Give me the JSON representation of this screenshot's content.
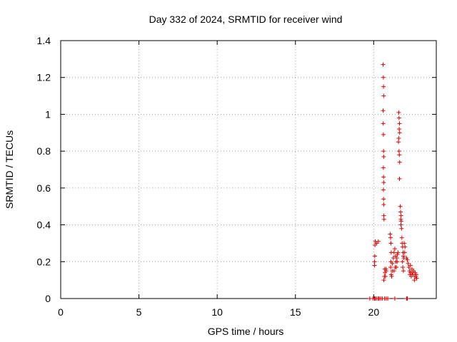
{
  "chart_data": {
    "type": "scatter",
    "title": "Day 332 of 2024, SRMTID for receiver wind",
    "xlabel": "GPS time / hours",
    "ylabel": "SRMTID / TECUs",
    "xlim": [
      0,
      24
    ],
    "ylim": [
      0,
      1.4
    ],
    "xticks": [
      0,
      5,
      10,
      15,
      20
    ],
    "xtick_labels": [
      "0",
      "5",
      "10",
      "15",
      "20"
    ],
    "yticks": [
      0,
      0.2,
      0.4,
      0.6,
      0.8,
      1,
      1.2,
      1.4
    ],
    "ytick_labels": [
      "0",
      "0.2",
      "0.4",
      "0.6",
      "0.8",
      "1",
      "1.2",
      "1.4"
    ],
    "grid": true,
    "marker": "+",
    "color": "#e00000",
    "series": [
      {
        "name": "SRMTID",
        "points": [
          [
            19.75,
            0
          ],
          [
            19.95,
            0
          ],
          [
            20.05,
            0
          ],
          [
            20.1,
            0
          ],
          [
            20.2,
            0
          ],
          [
            20.3,
            0
          ],
          [
            20.35,
            0
          ],
          [
            20.45,
            0
          ],
          [
            20.55,
            0
          ],
          [
            20.7,
            0
          ],
          [
            20.8,
            0
          ],
          [
            20.9,
            0
          ],
          [
            21.35,
            0
          ],
          [
            22.1,
            0
          ],
          [
            22.15,
            0
          ],
          [
            20.05,
            0.18
          ],
          [
            20.06,
            0.2
          ],
          [
            20.07,
            0.23
          ],
          [
            20.08,
            0.29
          ],
          [
            20.1,
            0.31
          ],
          [
            20.2,
            0.3
          ],
          [
            20.3,
            0.31
          ],
          [
            20.6,
            1.27
          ],
          [
            20.62,
            1.2
          ],
          [
            20.63,
            1.15
          ],
          [
            20.64,
            1.1
          ],
          [
            20.6,
            1.02
          ],
          [
            20.61,
            0.95
          ],
          [
            20.62,
            0.89
          ],
          [
            20.63,
            0.8
          ],
          [
            20.64,
            0.77
          ],
          [
            20.62,
            0.71
          ],
          [
            20.63,
            0.66
          ],
          [
            20.64,
            0.63
          ],
          [
            20.62,
            0.59
          ],
          [
            20.63,
            0.54
          ],
          [
            20.64,
            0.51
          ],
          [
            20.65,
            0.45
          ],
          [
            20.66,
            0.43
          ],
          [
            20.7,
            0.16
          ],
          [
            20.72,
            0.14
          ],
          [
            20.68,
            0.12
          ],
          [
            20.65,
            0.1
          ],
          [
            20.75,
            0.12
          ],
          [
            20.78,
            0.16
          ],
          [
            20.8,
            0.15
          ],
          [
            21.05,
            0.35
          ],
          [
            21.08,
            0.33
          ],
          [
            21.1,
            0.3
          ],
          [
            21.12,
            0.25
          ],
          [
            21.1,
            0.2
          ],
          [
            21.08,
            0.17
          ],
          [
            21.12,
            0.13
          ],
          [
            21.15,
            0.12
          ],
          [
            21.18,
            0.15
          ],
          [
            21.2,
            0.19
          ],
          [
            21.25,
            0.22
          ],
          [
            21.3,
            0.25
          ],
          [
            21.35,
            0.27
          ],
          [
            21.4,
            0.23
          ],
          [
            21.42,
            0.2
          ],
          [
            21.38,
            0.17
          ],
          [
            21.3,
            0.15
          ],
          [
            21.45,
            0.17
          ],
          [
            21.5,
            0.2
          ],
          [
            21.52,
            0.24
          ],
          [
            21.55,
            0.25
          ],
          [
            21.48,
            0.22
          ],
          [
            21.6,
            1.01
          ],
          [
            21.62,
            0.98
          ],
          [
            21.65,
            0.95
          ],
          [
            21.63,
            0.92
          ],
          [
            21.66,
            0.9
          ],
          [
            21.6,
            0.87
          ],
          [
            21.58,
            0.85
          ],
          [
            21.62,
            0.8
          ],
          [
            21.64,
            0.78
          ],
          [
            21.66,
            0.74
          ],
          [
            21.65,
            0.65
          ],
          [
            21.7,
            0.5
          ],
          [
            21.72,
            0.47
          ],
          [
            21.75,
            0.45
          ],
          [
            21.73,
            0.43
          ],
          [
            21.76,
            0.42
          ],
          [
            21.74,
            0.4
          ],
          [
            21.78,
            0.38
          ],
          [
            21.8,
            0.33
          ],
          [
            21.82,
            0.3
          ],
          [
            21.85,
            0.28
          ],
          [
            21.88,
            0.25
          ],
          [
            21.9,
            0.23
          ],
          [
            21.92,
            0.22
          ],
          [
            21.95,
            0.3
          ],
          [
            22.0,
            0.28
          ],
          [
            21.98,
            0.25
          ],
          [
            21.84,
            0.2
          ],
          [
            21.86,
            0.17
          ],
          [
            21.9,
            0.15
          ],
          [
            22.1,
            0.22
          ],
          [
            22.15,
            0.21
          ],
          [
            22.2,
            0.19
          ],
          [
            22.25,
            0.17
          ],
          [
            22.3,
            0.15
          ],
          [
            22.32,
            0.13
          ],
          [
            22.35,
            0.14
          ],
          [
            22.4,
            0.12
          ],
          [
            22.45,
            0.16
          ],
          [
            22.5,
            0.13
          ],
          [
            22.55,
            0.15
          ],
          [
            22.6,
            0.1
          ],
          [
            22.62,
            0.12
          ],
          [
            22.65,
            0.14
          ],
          [
            22.7,
            0.12
          ],
          [
            22.72,
            0.13
          ],
          [
            22.75,
            0.11
          ],
          [
            22.35,
            0.18
          ],
          [
            22.45,
            0.14
          ]
        ]
      }
    ]
  }
}
